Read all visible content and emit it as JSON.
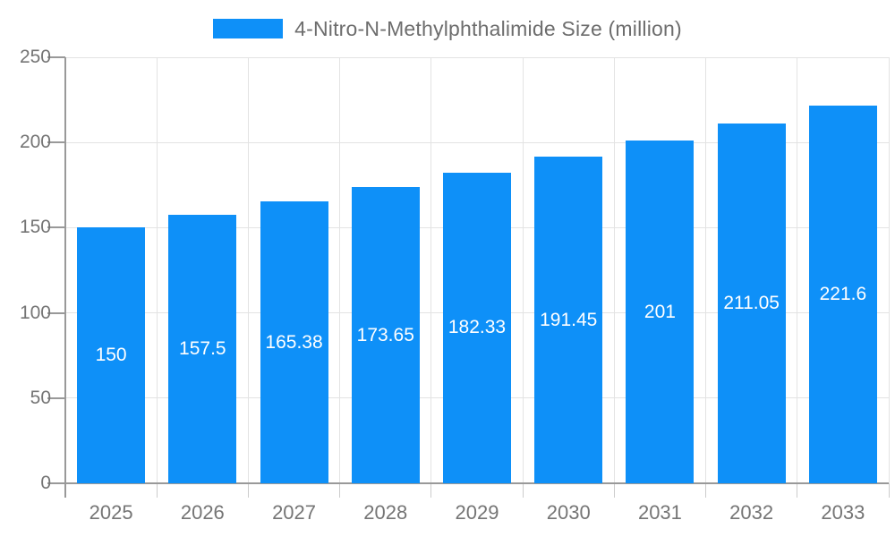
{
  "chart_data": {
    "type": "bar",
    "title": "4-Nitro-N-Methylphthalimide Size (million)",
    "categories": [
      "2025",
      "2026",
      "2027",
      "2028",
      "2029",
      "2030",
      "2031",
      "2032",
      "2033"
    ],
    "values": [
      150,
      157.5,
      165.38,
      173.65,
      182.33,
      191.45,
      201,
      211.05,
      221.6
    ],
    "value_labels": [
      "150",
      "157.5",
      "165.38",
      "173.65",
      "182.33",
      "191.45",
      "201",
      "211.05",
      "221.6"
    ],
    "xlabel": "",
    "ylabel": "",
    "ylim": [
      0,
      250
    ],
    "yticks": [
      0,
      50,
      100,
      150,
      200,
      250
    ],
    "grid": true,
    "legend_position": "top",
    "value_label_position": "inside-center",
    "colors": {
      "bar": "#0e90f8",
      "label": "#ffffff",
      "axis": "#999999",
      "grid": "#e3e3e3",
      "tick": "#cccccc",
      "text": "#757575",
      "title": "#6d6d6d"
    }
  }
}
